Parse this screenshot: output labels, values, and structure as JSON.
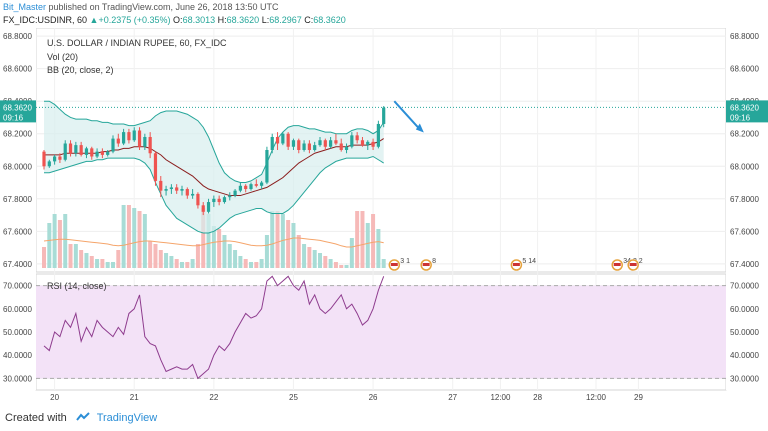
{
  "header": {
    "author": "Bit_Master",
    "published_text": "published on TradingView.com, June 26, 2018 13:50 UTC",
    "symbol_line": "FX_IDC:USDINR, 60",
    "change_arrow": "▲",
    "change_text": "+0.2375 (+0.35%)",
    "ohlc": {
      "o_label": "O:",
      "o": "68.3013",
      "h_label": "H:",
      "h": "68.3620",
      "l_label": "L:",
      "l": "68.2967",
      "c_label": "C:",
      "c": "68.3620"
    }
  },
  "legend": {
    "title": "U.S. DOLLAR / INDIAN RUPEE, 60, FX_IDC",
    "vol": "Vol (20)",
    "bb": "BB (20, close, 2)",
    "rsi": "RSI (14, close)"
  },
  "footer": {
    "created_with": "Created with",
    "brand": "TradingView"
  },
  "colors": {
    "up": "#26a69a",
    "down": "#ef5350",
    "bb_band": "#26a69a",
    "bb_basis": "#8b1e1e",
    "bb_fill": "#d7eeee",
    "rsi_line": "#8e3c8e",
    "rsi_fill": "#f3e2f7",
    "vol_ma": "#f5a56b",
    "price_badge": "#26a69a",
    "annotation_arrow": "#2b8ed6"
  },
  "chart_data": [
    {
      "type": "candlestick",
      "title": "U.S. DOLLAR / INDIAN RUPEE, 60, FX_IDC",
      "ylim": [
        67.35,
        68.85
      ],
      "y_ticks": [
        "68.8000",
        "68.6000",
        "68.4000",
        "68.2000",
        "68.0000",
        "67.8000",
        "67.6000",
        "67.4000"
      ],
      "x_ticks": [
        "20",
        "21",
        "22",
        "25",
        "26",
        "27",
        "12:00",
        "28",
        "12:00",
        "29"
      ],
      "last_price": "68.3620",
      "countdown": "09:16",
      "candles": [
        [
          68.09,
          68.1,
          67.98,
          68.0
        ],
        [
          68.0,
          68.04,
          67.99,
          68.03
        ],
        [
          68.03,
          68.07,
          68.01,
          68.06
        ],
        [
          68.06,
          68.08,
          68.02,
          68.04
        ],
        [
          68.04,
          68.16,
          68.03,
          68.14
        ],
        [
          68.14,
          68.16,
          68.06,
          68.08
        ],
        [
          68.08,
          68.15,
          68.06,
          68.13
        ],
        [
          68.13,
          68.15,
          68.06,
          68.07
        ],
        [
          68.07,
          68.12,
          68.05,
          68.11
        ],
        [
          68.11,
          68.12,
          68.04,
          68.06
        ],
        [
          68.06,
          68.11,
          68.05,
          68.09
        ],
        [
          68.09,
          68.11,
          68.05,
          68.07
        ],
        [
          68.07,
          68.1,
          68.06,
          68.09
        ],
        [
          68.09,
          68.19,
          68.08,
          68.17
        ],
        [
          68.17,
          68.2,
          68.12,
          68.14
        ],
        [
          68.14,
          68.23,
          68.13,
          68.21
        ],
        [
          68.21,
          68.23,
          68.14,
          68.16
        ],
        [
          68.16,
          68.24,
          68.15,
          68.22
        ],
        [
          68.22,
          68.24,
          68.1,
          68.12
        ],
        [
          68.12,
          68.2,
          68.1,
          68.18
        ],
        [
          68.18,
          68.21,
          68.05,
          68.08
        ],
        [
          68.08,
          68.09,
          67.88,
          67.91
        ],
        [
          67.91,
          67.94,
          67.81,
          67.85
        ],
        [
          67.85,
          67.88,
          67.82,
          67.86
        ],
        [
          67.86,
          67.89,
          67.83,
          67.87
        ],
        [
          67.87,
          67.89,
          67.83,
          67.85
        ],
        [
          67.85,
          67.88,
          67.82,
          67.86
        ],
        [
          67.86,
          67.87,
          67.8,
          67.82
        ],
        [
          67.82,
          67.86,
          67.8,
          67.83
        ],
        [
          67.83,
          67.84,
          67.74,
          67.76
        ],
        [
          67.76,
          67.78,
          67.7,
          67.72
        ],
        [
          67.72,
          67.8,
          67.71,
          67.78
        ],
        [
          67.78,
          67.82,
          67.75,
          67.8
        ],
        [
          67.8,
          67.82,
          67.76,
          67.78
        ],
        [
          67.78,
          67.82,
          67.77,
          67.81
        ],
        [
          67.81,
          67.84,
          67.79,
          67.82
        ],
        [
          67.82,
          67.86,
          67.81,
          67.85
        ],
        [
          67.85,
          67.9,
          67.84,
          67.88
        ],
        [
          67.88,
          67.89,
          67.84,
          67.86
        ],
        [
          67.86,
          67.9,
          67.85,
          67.89
        ],
        [
          67.89,
          67.92,
          67.87,
          67.88
        ],
        [
          67.88,
          67.91,
          67.86,
          67.9
        ],
        [
          67.9,
          68.12,
          67.89,
          68.1
        ],
        [
          68.1,
          68.2,
          68.08,
          68.18
        ],
        [
          68.18,
          68.21,
          68.1,
          68.14
        ],
        [
          68.14,
          68.21,
          68.13,
          68.2
        ],
        [
          68.2,
          68.21,
          68.1,
          68.12
        ],
        [
          68.12,
          68.17,
          68.1,
          68.16
        ],
        [
          68.16,
          68.17,
          68.08,
          68.1
        ],
        [
          68.1,
          68.16,
          68.09,
          68.14
        ],
        [
          68.14,
          68.16,
          68.08,
          68.1
        ],
        [
          68.1,
          68.15,
          68.09,
          68.13
        ],
        [
          68.13,
          68.18,
          68.12,
          68.16
        ],
        [
          68.16,
          68.17,
          68.1,
          68.12
        ],
        [
          68.12,
          68.18,
          68.11,
          68.16
        ],
        [
          68.16,
          68.2,
          68.13,
          68.14
        ],
        [
          68.14,
          68.17,
          68.09,
          68.1
        ],
        [
          68.1,
          68.14,
          68.08,
          68.12
        ],
        [
          68.12,
          68.21,
          68.11,
          68.19
        ],
        [
          68.19,
          68.21,
          68.14,
          68.16
        ],
        [
          68.16,
          68.18,
          68.12,
          68.13
        ],
        [
          68.13,
          68.16,
          68.1,
          68.15
        ],
        [
          68.15,
          68.17,
          68.1,
          68.12
        ],
        [
          68.12,
          68.28,
          68.11,
          68.26
        ],
        [
          68.26,
          68.37,
          68.24,
          68.36
        ]
      ],
      "bb_upper": [
        68.4,
        68.4,
        68.38,
        68.35,
        68.32,
        68.3,
        68.29,
        68.29,
        68.29,
        68.28,
        68.28,
        68.27,
        68.27,
        68.26,
        68.26,
        68.26,
        68.25,
        68.25,
        68.26,
        68.27,
        68.28,
        68.31,
        68.33,
        68.34,
        68.34,
        68.34,
        68.33,
        68.32,
        68.3,
        68.28,
        68.24,
        68.18,
        68.1,
        68.02,
        67.96,
        67.93,
        67.91,
        67.9,
        67.9,
        67.91,
        67.93,
        67.95,
        68.02,
        68.1,
        68.17,
        68.21,
        68.24,
        68.25,
        68.25,
        68.24,
        68.23,
        68.23,
        68.22,
        68.21,
        68.21,
        68.2,
        68.2,
        68.2,
        68.22,
        68.23,
        68.23,
        68.22,
        68.2,
        68.22,
        68.27
      ],
      "bb_basis": [
        68.07,
        68.07,
        68.07,
        68.07,
        68.08,
        68.08,
        68.08,
        68.08,
        68.08,
        68.08,
        68.08,
        68.09,
        68.09,
        68.1,
        68.1,
        68.11,
        68.11,
        68.12,
        68.12,
        68.12,
        68.11,
        68.09,
        68.07,
        68.04,
        68.02,
        68.0,
        67.98,
        67.96,
        67.94,
        67.91,
        67.88,
        67.86,
        67.85,
        67.84,
        67.83,
        67.82,
        67.82,
        67.82,
        67.83,
        67.84,
        67.85,
        67.86,
        67.87,
        67.89,
        67.91,
        67.93,
        67.96,
        67.99,
        68.02,
        68.04,
        68.06,
        68.08,
        68.09,
        68.1,
        68.11,
        68.12,
        68.12,
        68.12,
        68.13,
        68.13,
        68.13,
        68.13,
        68.14,
        68.15,
        68.17
      ],
      "bb_lower": [
        67.96,
        67.96,
        67.97,
        67.98,
        67.99,
        68.0,
        68.01,
        68.02,
        68.03,
        68.03,
        68.04,
        68.04,
        68.05,
        68.05,
        68.05,
        68.05,
        68.05,
        68.05,
        68.04,
        68.02,
        67.98,
        67.9,
        67.83,
        67.76,
        67.72,
        67.68,
        67.66,
        67.64,
        67.62,
        67.6,
        67.59,
        67.59,
        67.6,
        67.62,
        67.65,
        67.68,
        67.7,
        67.71,
        67.72,
        67.73,
        67.74,
        67.74,
        67.72,
        67.71,
        67.71,
        67.71,
        67.73,
        67.76,
        67.8,
        67.84,
        67.88,
        67.92,
        67.96,
        67.99,
        68.01,
        68.03,
        68.04,
        68.05,
        68.05,
        68.05,
        68.05,
        68.05,
        68.06,
        68.04,
        68.02
      ],
      "volume": [
        0.35,
        0.75,
        0.9,
        0.8,
        0.9,
        0.4,
        0.4,
        0.3,
        0.25,
        0.2,
        0.15,
        0.15,
        0.1,
        0.1,
        0.3,
        1.05,
        1.05,
        1.0,
        0.95,
        0.9,
        0.45,
        0.4,
        0.3,
        0.25,
        0.2,
        0.15,
        0.1,
        0.1,
        0.15,
        0.4,
        1.0,
        0.9,
        0.7,
        0.65,
        0.55,
        0.4,
        0.3,
        0.2,
        0.15,
        0.1,
        0.1,
        0.15,
        0.55,
        0.95,
        0.95,
        0.9,
        0.8,
        0.75,
        0.55,
        0.4,
        0.35,
        0.3,
        0.25,
        0.2,
        0.15,
        0.1,
        0.05,
        0.05,
        0.5,
        0.95,
        0.95,
        0.75,
        0.9,
        0.65,
        0.15
      ],
      "volume_ma": [
        0.45,
        0.46,
        0.47,
        0.48,
        0.48,
        0.47,
        0.46,
        0.45,
        0.44,
        0.43,
        0.42,
        0.41,
        0.4,
        0.38,
        0.37,
        0.38,
        0.4,
        0.42,
        0.44,
        0.45,
        0.45,
        0.44,
        0.43,
        0.42,
        0.41,
        0.4,
        0.39,
        0.38,
        0.37,
        0.37,
        0.39,
        0.41,
        0.43,
        0.44,
        0.45,
        0.45,
        0.44,
        0.42,
        0.4,
        0.38,
        0.37,
        0.37,
        0.38,
        0.4,
        0.43,
        0.46,
        0.48,
        0.5,
        0.5,
        0.49,
        0.48,
        0.47,
        0.46,
        0.44,
        0.42,
        0.4,
        0.37,
        0.35,
        0.35,
        0.37,
        0.39,
        0.41,
        0.43,
        0.44,
        0.42
      ],
      "events": [
        {
          "x": 66,
          "label": "3 1"
        },
        {
          "x": 72,
          "label": "8"
        },
        {
          "x": 89,
          "label": "5 14"
        },
        {
          "x": 108,
          "label": "34 3 2"
        },
        {
          "x": 111,
          "label": ""
        }
      ]
    },
    {
      "type": "line",
      "title": "RSI (14, close)",
      "ylim": [
        25,
        75
      ],
      "y_ticks": [
        "70.0000",
        "60.0000",
        "50.0000",
        "40.0000",
        "30.0000"
      ],
      "overbought": 70,
      "oversold": 30,
      "values": [
        44,
        42,
        50,
        48,
        55,
        52,
        58,
        46,
        52,
        48,
        55,
        52,
        50,
        48,
        52,
        49,
        58,
        60,
        66,
        48,
        45,
        44,
        38,
        33,
        34,
        35,
        34,
        34,
        36,
        30,
        32,
        34,
        40,
        44,
        42,
        45,
        50,
        54,
        58,
        56,
        57,
        60,
        72,
        74,
        70,
        72,
        74,
        70,
        68,
        72,
        62,
        66,
        60,
        58,
        60,
        63,
        66,
        60,
        62,
        58,
        53,
        55,
        60,
        68,
        74
      ]
    }
  ]
}
